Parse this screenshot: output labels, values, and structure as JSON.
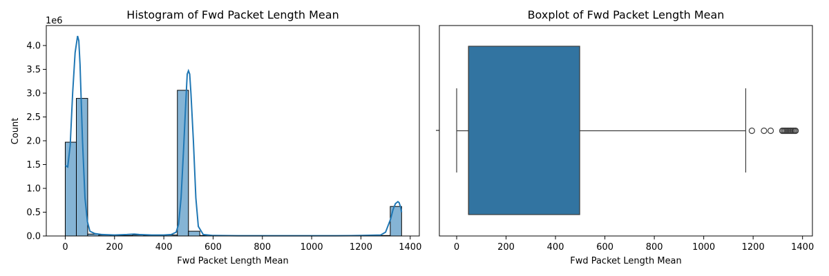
{
  "chart_data": [
    {
      "type": "histogram",
      "title": "Histogram of Fwd Packet Length Mean",
      "xlabel": "Fwd Packet Length Mean",
      "ylabel": "Count",
      "y_offset_label": "1e6",
      "xlim": [
        -77,
        1437
      ],
      "ylim": [
        0,
        4.42
      ],
      "xticks": [
        0,
        200,
        400,
        600,
        800,
        1000,
        1200,
        1400
      ],
      "xtick_labels": [
        "0",
        "200",
        "400",
        "600",
        "800",
        "1000",
        "1200",
        "1400"
      ],
      "yticks": [
        0,
        0.5,
        1.0,
        1.5,
        2.0,
        2.5,
        3.0,
        3.5,
        4.0
      ],
      "ytick_labels": [
        "0.0",
        "0.5",
        "1.0",
        "1.5",
        "2.0",
        "2.5",
        "3.0",
        "3.5",
        "4.0"
      ],
      "bar_color": "#85b4d5",
      "bar_edge_color": "#000000",
      "kde_color": "#1f77b4",
      "bins": [
        {
          "x0": 0,
          "x1": 45,
          "count": 1.97
        },
        {
          "x0": 45,
          "x1": 91,
          "count": 2.89
        },
        {
          "x0": 91,
          "x1": 136,
          "count": 0.04
        },
        {
          "x0": 136,
          "x1": 182,
          "count": 0.02
        },
        {
          "x0": 182,
          "x1": 227,
          "count": 0.01
        },
        {
          "x0": 227,
          "x1": 273,
          "count": 0.01
        },
        {
          "x0": 273,
          "x1": 318,
          "count": 0.02
        },
        {
          "x0": 318,
          "x1": 364,
          "count": 0.01
        },
        {
          "x0": 364,
          "x1": 409,
          "count": 0.01
        },
        {
          "x0": 409,
          "x1": 455,
          "count": 0.02
        },
        {
          "x0": 455,
          "x1": 500,
          "count": 3.06
        },
        {
          "x0": 500,
          "x1": 546,
          "count": 0.1
        },
        {
          "x0": 546,
          "x1": 591,
          "count": 0.01
        },
        {
          "x0": 591,
          "x1": 637,
          "count": 0.005
        },
        {
          "x0": 637,
          "x1": 682,
          "count": 0.003
        },
        {
          "x0": 682,
          "x1": 728,
          "count": 0.003
        },
        {
          "x0": 728,
          "x1": 773,
          "count": 0.003
        },
        {
          "x0": 773,
          "x1": 819,
          "count": 0.003
        },
        {
          "x0": 819,
          "x1": 864,
          "count": 0.003
        },
        {
          "x0": 864,
          "x1": 910,
          "count": 0.003
        },
        {
          "x0": 910,
          "x1": 955,
          "count": 0.003
        },
        {
          "x0": 955,
          "x1": 1001,
          "count": 0.003
        },
        {
          "x0": 1001,
          "x1": 1046,
          "count": 0.003
        },
        {
          "x0": 1046,
          "x1": 1092,
          "count": 0.003
        },
        {
          "x0": 1092,
          "x1": 1137,
          "count": 0.003
        },
        {
          "x0": 1137,
          "x1": 1183,
          "count": 0.003
        },
        {
          "x0": 1183,
          "x1": 1228,
          "count": 0.003
        },
        {
          "x0": 1228,
          "x1": 1274,
          "count": 0.003
        },
        {
          "x0": 1274,
          "x1": 1319,
          "count": 0.01
        },
        {
          "x0": 1319,
          "x1": 1365,
          "count": 0.62
        }
      ],
      "kde": {
        "x": [
          0,
          10,
          20,
          30,
          40,
          50,
          55,
          60,
          70,
          80,
          90,
          100,
          120,
          150,
          200,
          250,
          280,
          300,
          350,
          400,
          430,
          450,
          460,
          470,
          480,
          490,
          495,
          500,
          505,
          510,
          520,
          530,
          540,
          560,
          600,
          700,
          800,
          900,
          1000,
          1100,
          1200,
          1280,
          1300,
          1320,
          1330,
          1340,
          1350,
          1355,
          1360,
          1365
        ],
        "y": [
          1.48,
          1.45,
          1.9,
          3.0,
          3.85,
          4.2,
          4.1,
          3.6,
          2.0,
          0.8,
          0.3,
          0.1,
          0.05,
          0.03,
          0.02,
          0.03,
          0.04,
          0.03,
          0.02,
          0.02,
          0.03,
          0.08,
          0.25,
          0.8,
          1.8,
          2.9,
          3.4,
          3.47,
          3.4,
          3.0,
          2.0,
          0.8,
          0.2,
          0.03,
          0.01,
          0.005,
          0.005,
          0.005,
          0.005,
          0.005,
          0.01,
          0.02,
          0.08,
          0.35,
          0.55,
          0.68,
          0.72,
          0.7,
          0.62,
          0.5
        ]
      }
    },
    {
      "type": "boxplot",
      "title": "Boxplot of Fwd Packet Length Mean",
      "xlabel": "Fwd Packet Length Mean",
      "xlim": [
        -70,
        1440
      ],
      "xticks": [
        0,
        200,
        400,
        600,
        800,
        1000,
        1200,
        1400
      ],
      "xtick_labels": [
        "0",
        "200",
        "400",
        "600",
        "800",
        "1000",
        "1200",
        "1400"
      ],
      "box_color": "#3274a1",
      "line_color": "#3d3d3d",
      "whisker_low": 0,
      "q1": 48,
      "median": 48,
      "q3": 498,
      "whisker_high": 1170,
      "outliers": [
        1195,
        1244,
        1271,
        1318,
        1323,
        1328,
        1333,
        1338,
        1343,
        1348,
        1353,
        1358,
        1363,
        1368,
        1372
      ]
    }
  ]
}
